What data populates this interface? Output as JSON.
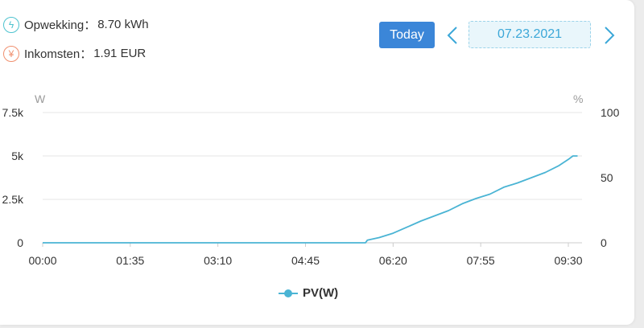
{
  "summary": {
    "generation_label": "Opwekking：",
    "generation_value": "8.70 kWh",
    "income_label": "Inkomsten：",
    "income_value": "1.91 EUR",
    "generation_icon": "bolt-icon",
    "income_icon": "yen-icon",
    "generation_icon_glyph": "ϟ",
    "income_icon_glyph": "¥"
  },
  "date_nav": {
    "today_label": "Today",
    "date": "07.23.2021",
    "prev_icon": "chevron-left-icon",
    "next_icon": "chevron-right-icon"
  },
  "colors": {
    "accent": "#3b86d8",
    "series": "#4ab4d4",
    "grid": "#e6e6e6",
    "axis_text": "#333333",
    "unit_text": "#9a9a9a"
  },
  "chart_data": {
    "type": "line",
    "left_unit": "W",
    "right_unit": "%",
    "x_ticks": [
      "00:00",
      "01:35",
      "03:10",
      "04:45",
      "06:20",
      "07:55",
      "09:30"
    ],
    "x_range_minutes": [
      0,
      585
    ],
    "y_left_ticks": [
      "0",
      "2.5k",
      "5k",
      "7.5k"
    ],
    "y_left_range": [
      0,
      7500
    ],
    "y_right_ticks": [
      "0",
      "50",
      "100"
    ],
    "y_right_range": [
      0,
      100
    ],
    "grid": true,
    "legend_position": "bottom-center",
    "series": [
      {
        "name": "PV(W)",
        "points": [
          {
            "x": "00:00",
            "y": 0
          },
          {
            "x": "05:50",
            "y": 0
          },
          {
            "x": "05:52",
            "y": 150
          },
          {
            "x": "06:05",
            "y": 300
          },
          {
            "x": "06:20",
            "y": 550
          },
          {
            "x": "06:35",
            "y": 900
          },
          {
            "x": "06:50",
            "y": 1250
          },
          {
            "x": "07:05",
            "y": 1550
          },
          {
            "x": "07:20",
            "y": 1850
          },
          {
            "x": "07:35",
            "y": 2250
          },
          {
            "x": "07:50",
            "y": 2550
          },
          {
            "x": "08:05",
            "y": 2800
          },
          {
            "x": "08:20",
            "y": 3200
          },
          {
            "x": "08:35",
            "y": 3450
          },
          {
            "x": "08:50",
            "y": 3750
          },
          {
            "x": "09:05",
            "y": 4050
          },
          {
            "x": "09:20",
            "y": 4450
          },
          {
            "x": "09:30",
            "y": 4800
          },
          {
            "x": "09:35",
            "y": 5000
          },
          {
            "x": "09:40",
            "y": 5000
          }
        ]
      }
    ]
  }
}
